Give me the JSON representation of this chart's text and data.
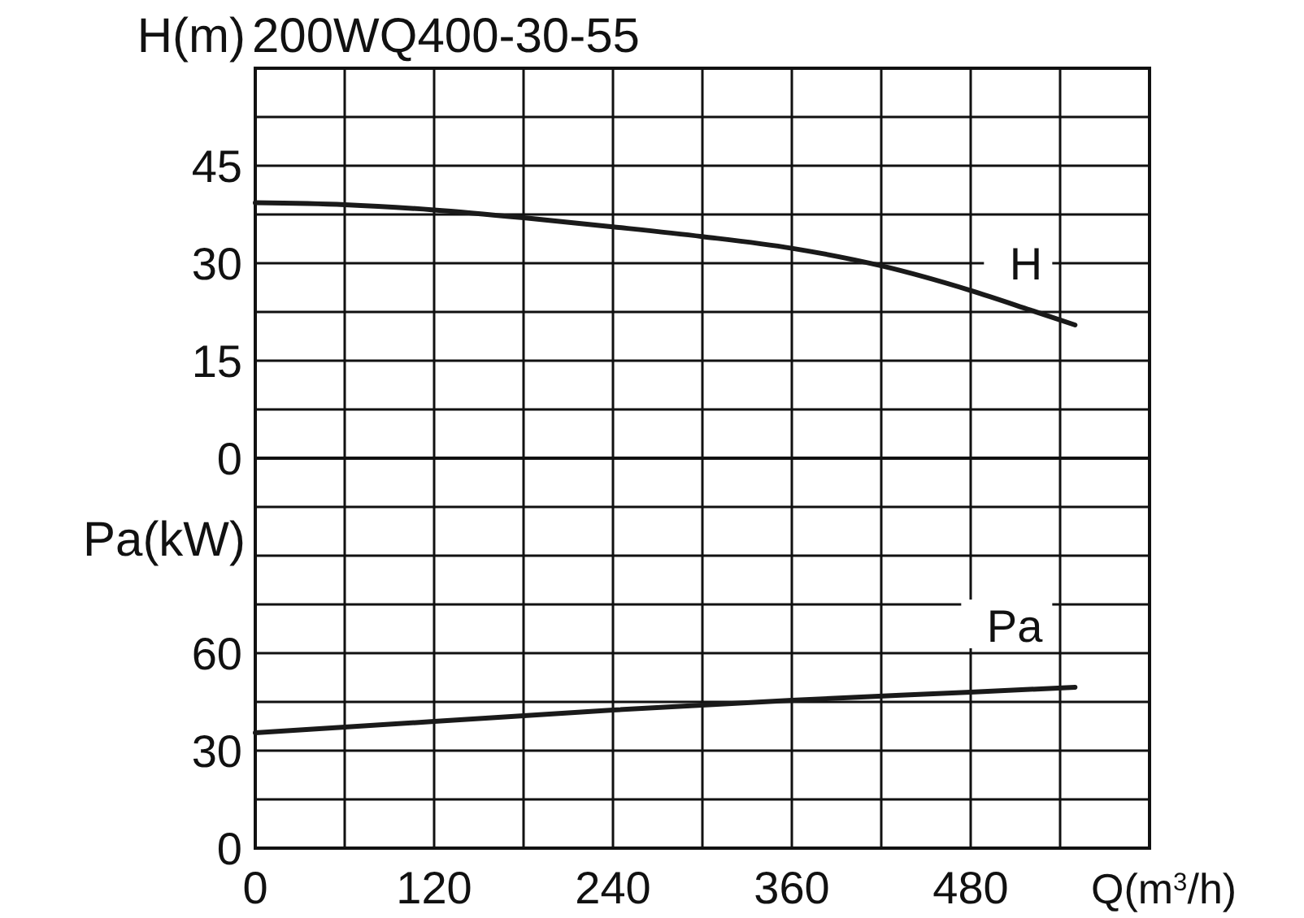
{
  "chart_data": [
    {
      "type": "line",
      "title": "200WQ400-30-55",
      "ylabel": "H(m)",
      "x": [
        0,
        60,
        120,
        180,
        240,
        300,
        360,
        420,
        480,
        520,
        550
      ],
      "series": [
        {
          "name": "H",
          "color": "#1a1a1a",
          "values": [
            39.3,
            39,
            38.2,
            37,
            35.6,
            34.1,
            32.3,
            29.6,
            25.8,
            22.8,
            20.5
          ]
        }
      ],
      "xlim": [
        0,
        600
      ],
      "xticks": [
        0,
        {
          "value": 60,
          "label": null
        },
        120,
        {
          "value": 180,
          "label": null
        },
        240,
        {
          "value": 300,
          "label": null
        },
        360,
        {
          "value": 420,
          "label": null
        },
        480,
        {
          "value": 540,
          "label": null
        },
        {
          "value": 600,
          "label": null
        }
      ],
      "ylim": [
        0,
        60
      ],
      "yticks": [
        0,
        {
          "value": 7.5,
          "label": null
        },
        15,
        {
          "value": 22.5,
          "label": null
        },
        30,
        {
          "value": 37.5,
          "label": null
        },
        45,
        {
          "value": 52.5,
          "label": null
        },
        {
          "value": 60,
          "label": null
        }
      ],
      "grid": true,
      "tick_labels": "y",
      "line_style": "solid",
      "marker": "none"
    },
    {
      "type": "line",
      "ylabel": "Pa(kW)",
      "xlabel": "Q(m$^{3}$/h)",
      "x": [
        0,
        120,
        240,
        360,
        480,
        550
      ],
      "series": [
        {
          "name": "Pa",
          "color": "#1a1a1a",
          "values": [
            35.5,
            39,
            42.5,
            45.5,
            48,
            49.5
          ]
        }
      ],
      "xlim": [
        0,
        600
      ],
      "xticks": [
        0,
        {
          "value": 60,
          "label": null
        },
        120,
        {
          "value": 180,
          "label": null
        },
        240,
        {
          "value": 300,
          "label": null
        },
        360,
        {
          "value": 420,
          "label": null
        },
        480,
        {
          "value": 540,
          "label": null
        },
        {
          "value": 600,
          "label": null
        }
      ],
      "ylim": [
        0,
        120
      ],
      "yticks": [
        0,
        {
          "value": 15,
          "label": null
        },
        30,
        {
          "value": 45,
          "label": null
        },
        60,
        {
          "value": 75,
          "label": null
        },
        {
          "value": 90,
          "label": null
        },
        {
          "value": 105,
          "label": null
        },
        {
          "value": 120,
          "label": null
        }
      ],
      "grid": true,
      "line_style": "solid",
      "marker": "none"
    }
  ]
}
